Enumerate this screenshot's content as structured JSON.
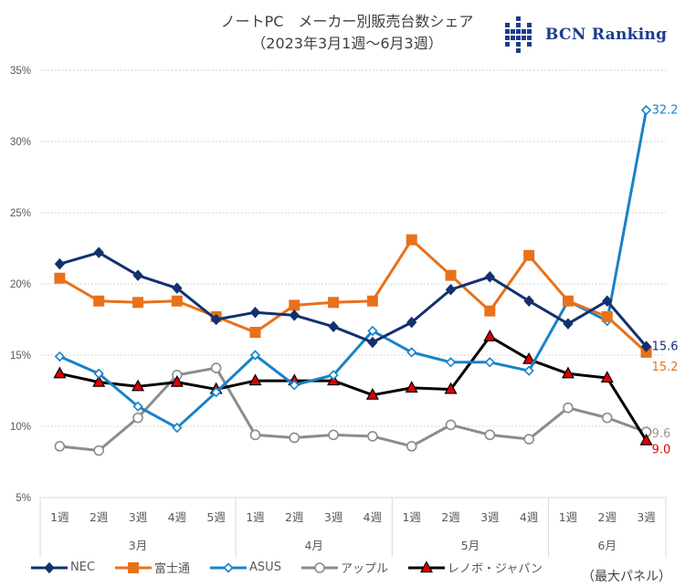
{
  "header": {
    "title_line1": "ノートPC　メーカー別販売台数シェア",
    "title_line2": "（2023年3月1週～6月3週）",
    "logo_text": "BCN Ranking"
  },
  "note": "（最大パネル）",
  "chart_data": {
    "type": "line",
    "title": "ノートPC メーカー別販売台数シェア（2023年3月1週～6月3週）",
    "xlabel": "",
    "ylabel": "",
    "ylim": [
      5,
      35
    ],
    "yticks": [
      5,
      10,
      15,
      20,
      25,
      30,
      35
    ],
    "ytick_labels": [
      "5%",
      "10%",
      "15%",
      "20%",
      "25%",
      "30%",
      "35%"
    ],
    "grid": true,
    "legend_position": "bottom",
    "x": [
      "1週",
      "2週",
      "3週",
      "4週",
      "5週",
      "1週",
      "2週",
      "3週",
      "4週",
      "1週",
      "2週",
      "3週",
      "4週",
      "1週",
      "2週",
      "3週"
    ],
    "month_groups": [
      {
        "label": "3月",
        "count": 5
      },
      {
        "label": "4月",
        "count": 4
      },
      {
        "label": "5月",
        "count": 4
      },
      {
        "label": "6月",
        "count": 3
      }
    ],
    "series": [
      {
        "name": "NEC",
        "color": "#12316e",
        "marker": "diamond",
        "values": [
          21.4,
          22.2,
          20.6,
          19.7,
          17.5,
          18.0,
          17.8,
          17.0,
          15.9,
          17.3,
          19.6,
          20.5,
          18.8,
          17.2,
          18.8,
          15.6
        ],
        "end_label": "15.6",
        "end_label_color": "#12316e"
      },
      {
        "name": "富士通",
        "color": "#e8711a",
        "marker": "square",
        "values": [
          20.4,
          18.8,
          18.7,
          18.8,
          17.7,
          16.6,
          18.5,
          18.7,
          18.8,
          23.1,
          20.6,
          18.1,
          22.0,
          18.8,
          17.7,
          15.2
        ],
        "end_label": "15.2",
        "end_label_color": "#e8711a"
      },
      {
        "name": "ASUS",
        "color": "#1a82c8",
        "marker": "open-diamond",
        "values": [
          14.9,
          13.7,
          11.4,
          9.9,
          12.4,
          15.0,
          12.9,
          13.6,
          16.7,
          15.2,
          14.5,
          14.5,
          13.9,
          18.8,
          17.4,
          32.2
        ],
        "end_label": "32.2",
        "end_label_color": "#1a82c8"
      },
      {
        "name": "アップル",
        "color": "#8a8d8a",
        "marker": "open-circle",
        "values": [
          8.6,
          8.3,
          10.6,
          13.6,
          14.1,
          9.4,
          9.2,
          9.4,
          9.3,
          8.6,
          10.1,
          9.4,
          9.1,
          11.3,
          10.6,
          9.6
        ],
        "end_label": "9.6",
        "end_label_color": "#9a9a9a"
      },
      {
        "name": "レノボ・ジャパン",
        "color": "#000000",
        "marker": "triangle",
        "marker_fill": "#e00000",
        "values": [
          13.7,
          13.1,
          12.8,
          13.1,
          12.6,
          13.2,
          13.2,
          13.2,
          12.2,
          12.7,
          12.6,
          16.3,
          14.7,
          13.7,
          13.4,
          9.0
        ],
        "end_label": "9.0",
        "end_label_color": "#e00000"
      }
    ]
  }
}
